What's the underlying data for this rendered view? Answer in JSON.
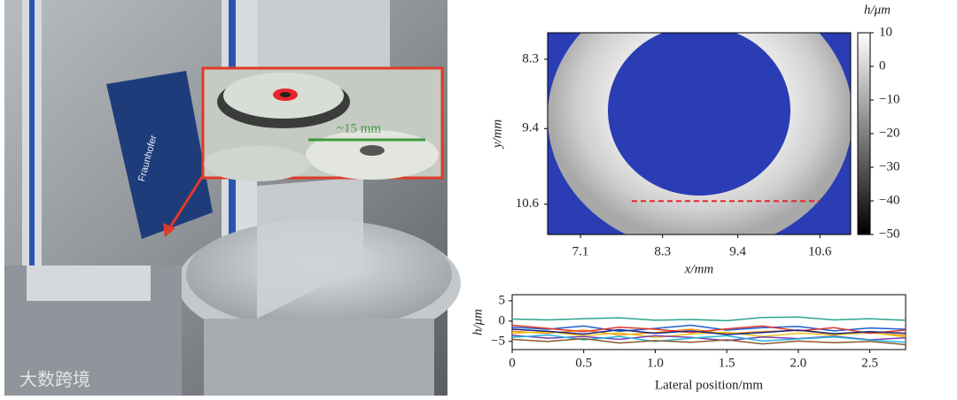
{
  "photo": {
    "annotation": "~15 mm",
    "brand": "Fraunhofer",
    "watermark": "大数跨境"
  },
  "chart_data": [
    {
      "type": "heatmap",
      "xlabel": "x/mm",
      "ylabel": "y/mm",
      "colorbar_label": "h/μm",
      "xlim": [
        6.62,
        11.05
      ],
      "ylim": [
        7.88,
        11.08
      ],
      "y_inverted": true,
      "xticks": [
        7.1,
        8.3,
        9.4,
        10.6
      ],
      "yticks": [
        8.3,
        9.4,
        10.6
      ],
      "clim": [
        -50,
        10
      ],
      "cticks": [
        10,
        0,
        {
          "value": -10,
          "label": "−10"
        },
        {
          "value": -20,
          "label": "−20"
        },
        {
          "value": -30,
          "label": "−30"
        },
        {
          "value": -40,
          "label": "−40"
        },
        {
          "value": -50,
          "label": "−50"
        }
      ],
      "profile_line": {
        "x": [
          7.85,
          10.6
        ],
        "y": [
          10.55,
          10.55
        ],
        "color": "#e8262a"
      }
    },
    {
      "type": "line",
      "xlabel": "Lateral position/mm",
      "ylabel": "h/μm",
      "xlim": [
        0,
        2.75
      ],
      "ylim": [
        -7,
        6.5
      ],
      "xticks": [
        0,
        0.5,
        {
          "value": 1,
          "label": "1.0"
        },
        1.5,
        {
          "value": 2,
          "label": "2.0"
        },
        2.5
      ],
      "yticks": [
        {
          "value": -5,
          "label": "−5"
        },
        0,
        5
      ],
      "x": [
        0,
        0.25,
        0.5,
        0.75,
        1,
        1.25,
        1.5,
        1.75,
        2,
        2.25,
        2.5,
        2.75
      ],
      "series": [
        {
          "color": "#2ca58d",
          "values": [
            0.5,
            0.3,
            0.6,
            0.8,
            0.2,
            0.4,
            0.1,
            0.9,
            1.0,
            0.3,
            0.6,
            0.2
          ]
        },
        {
          "color": "#1f5fd0",
          "values": [
            -1.5,
            -2.0,
            -1.2,
            -2.5,
            -1.8,
            -1.0,
            -2.2,
            -1.6,
            -1.3,
            -2.4,
            -1.7,
            -2.0
          ]
        },
        {
          "color": "#ff8c1a",
          "values": [
            -2.5,
            -3.0,
            -2.2,
            -3.4,
            -2.8,
            -2.0,
            -3.1,
            -2.6,
            -2.3,
            -3.2,
            -2.9,
            -3.5
          ]
        },
        {
          "color": "#e6c619",
          "values": [
            -3.0,
            -2.6,
            -3.6,
            -2.9,
            -4.0,
            -3.2,
            -2.7,
            -3.8,
            -3.0,
            -3.4,
            -2.8,
            -3.9
          ]
        },
        {
          "color": "#e0362c",
          "values": [
            -1.0,
            -1.8,
            -2.6,
            -1.5,
            -2.0,
            -2.8,
            -1.9,
            -1.2,
            -2.4,
            -1.6,
            -3.0,
            -2.2
          ]
        },
        {
          "color": "#7b3fb5",
          "values": [
            -3.5,
            -4.2,
            -3.8,
            -4.5,
            -3.6,
            -4.0,
            -4.8,
            -3.9,
            -4.3,
            -3.7,
            -4.6,
            -4.1
          ]
        },
        {
          "color": "#1a237e",
          "values": [
            -2.0,
            -2.5,
            -3.2,
            -2.1,
            -3.0,
            -2.4,
            -3.3,
            -2.8,
            -2.2,
            -3.1,
            -2.6,
            -3.0
          ]
        },
        {
          "color": "#22b5d6",
          "values": [
            -4.0,
            -3.4,
            -4.6,
            -3.8,
            -5.0,
            -4.2,
            -3.6,
            -4.9,
            -4.4,
            -3.9,
            -4.7,
            -5.2
          ]
        },
        {
          "color": "#8b5a2b",
          "values": [
            -4.5,
            -5.0,
            -4.3,
            -5.4,
            -4.8,
            -5.2,
            -4.6,
            -5.6,
            -4.9,
            -5.3,
            -5.0,
            -5.8
          ]
        }
      ]
    }
  ]
}
